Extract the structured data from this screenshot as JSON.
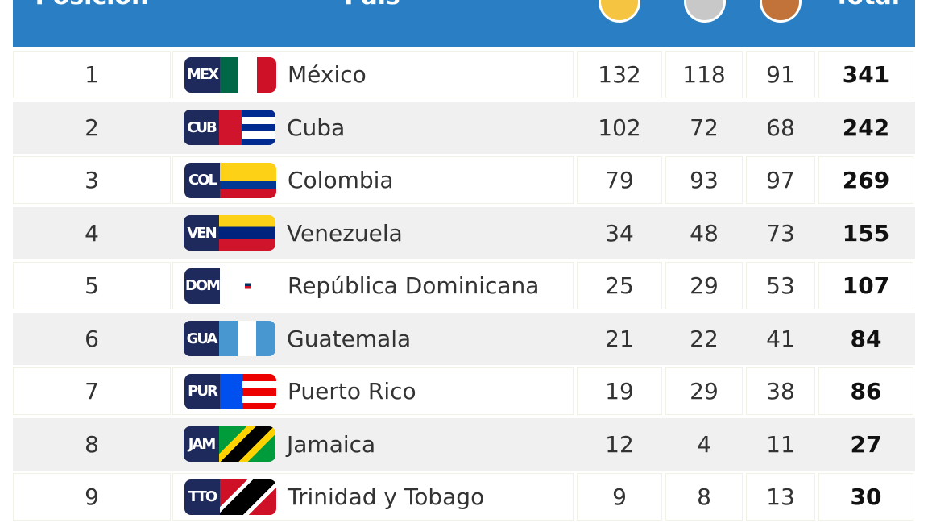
{
  "header": {
    "position": "Posición",
    "country": "País",
    "total": "Total"
  },
  "table": {
    "rows": [
      {
        "position": "1",
        "code": "MEX",
        "country": "México",
        "gold": 132,
        "silver": 118,
        "bronze": 91,
        "total": 341
      },
      {
        "position": "2",
        "code": "CUB",
        "country": "Cuba",
        "gold": 102,
        "silver": 72,
        "bronze": 68,
        "total": 242
      },
      {
        "position": "3",
        "code": "COL",
        "country": "Colombia",
        "gold": 79,
        "silver": 93,
        "bronze": 97,
        "total": 269
      },
      {
        "position": "4",
        "code": "VEN",
        "country": "Venezuela",
        "gold": 34,
        "silver": 48,
        "bronze": 73,
        "total": 155
      },
      {
        "position": "5",
        "code": "DOM",
        "country": "República Dominicana",
        "gold": 25,
        "silver": 29,
        "bronze": 53,
        "total": 107
      },
      {
        "position": "6",
        "code": "GUA",
        "country": "Guatemala",
        "gold": 21,
        "silver": 22,
        "bronze": 41,
        "total": 84
      },
      {
        "position": "7",
        "code": "PUR",
        "country": "Puerto Rico",
        "gold": 19,
        "silver": 29,
        "bronze": 38,
        "total": 86
      },
      {
        "position": "8",
        "code": "JAM",
        "country": "Jamaica",
        "gold": 12,
        "silver": 4,
        "bronze": 11,
        "total": 27
      },
      {
        "position": "9",
        "code": "TTO",
        "country": "Trinidad y Tobago",
        "gold": 9,
        "silver": 8,
        "bronze": 13,
        "total": 30
      }
    ]
  }
}
